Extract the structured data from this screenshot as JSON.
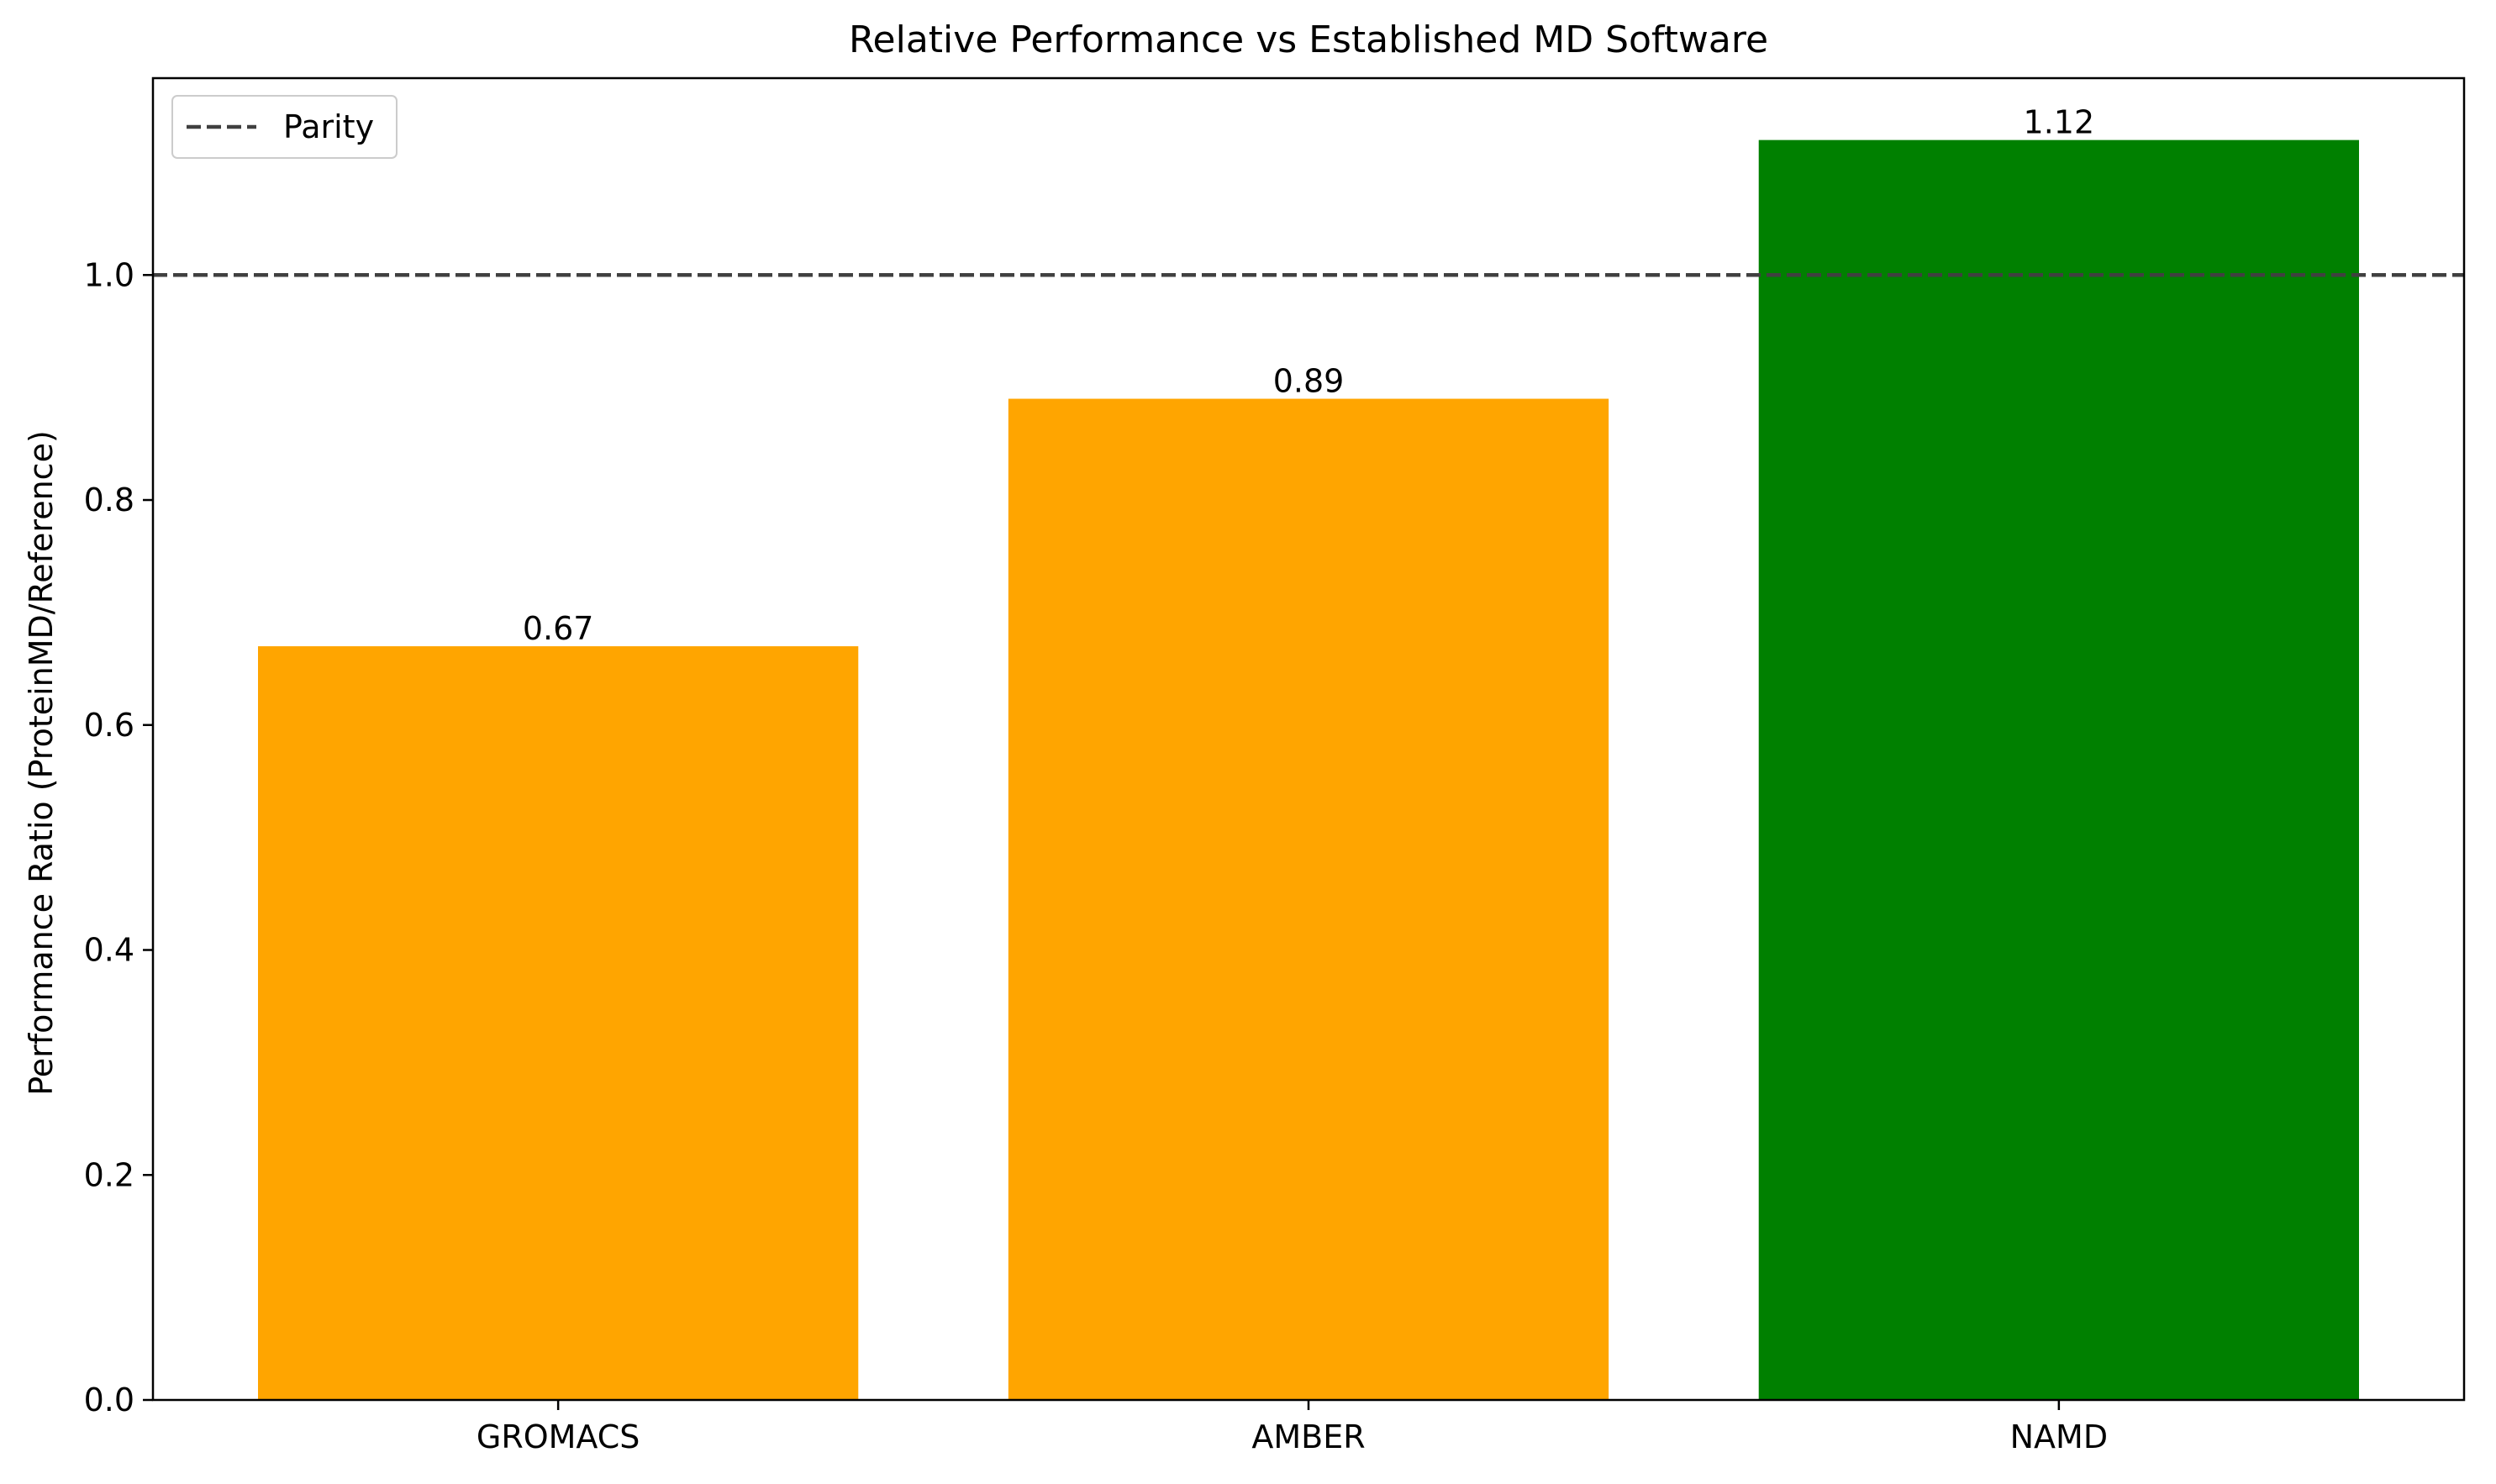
{
  "chart_data": {
    "type": "bar",
    "title": "Relative Performance vs Established MD Software",
    "xlabel": "",
    "ylabel": "Performance Ratio (ProteinMD/Reference)",
    "categories": [
      "GROMACS",
      "AMBER",
      "NAMD"
    ],
    "values": [
      0.67,
      0.89,
      1.12
    ],
    "value_labels": [
      "0.67",
      "0.89",
      "1.12"
    ],
    "bar_colors": [
      "#FFA500",
      "#FFA500",
      "#008000"
    ],
    "ylim": [
      0,
      1.175
    ],
    "yticks": [
      0.0,
      0.2,
      0.4,
      0.6,
      0.8,
      1.0
    ],
    "ytick_labels": [
      "0.0",
      "0.2",
      "0.4",
      "0.6",
      "0.8",
      "1.0"
    ],
    "reference_line": {
      "y": 1.0,
      "style": "dashed",
      "color": "#404040",
      "label": "Parity"
    },
    "legend": {
      "position": "top-left",
      "entries": [
        "Parity"
      ]
    },
    "grid": false
  }
}
